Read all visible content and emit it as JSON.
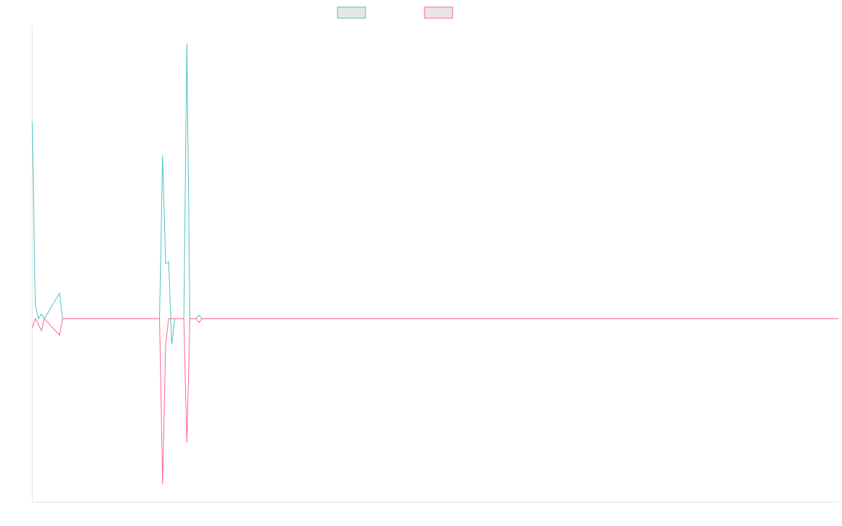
{
  "chart_data": {
    "type": "line",
    "title": "",
    "xlabel": "",
    "ylabel": "",
    "grid": false,
    "legend_position": "top-center",
    "ylim": [
      -2000,
      3200
    ],
    "xlim": [
      0,
      266
    ],
    "series": [
      {
        "color": "#4bc0c0",
        "fill": "#e6e6e6",
        "points": [
          [
            0,
            2150
          ],
          [
            1,
            150
          ],
          [
            2,
            0
          ],
          [
            3,
            50
          ],
          [
            4,
            0
          ],
          [
            9,
            280
          ],
          [
            10,
            0
          ],
          [
            42,
            0
          ],
          [
            43,
            1780
          ],
          [
            44,
            600
          ],
          [
            45,
            620
          ],
          [
            46,
            -280
          ],
          [
            47,
            0
          ],
          [
            50,
            0
          ],
          [
            51,
            3000
          ],
          [
            52,
            0
          ],
          [
            54,
            0
          ],
          [
            55,
            40
          ],
          [
            56,
            0
          ],
          [
            266,
            0
          ]
        ]
      },
      {
        "color": "#ff6384",
        "fill": "#e6e6e6",
        "points": [
          [
            0,
            -100
          ],
          [
            1,
            0
          ],
          [
            2,
            -60
          ],
          [
            3,
            -130
          ],
          [
            4,
            0
          ],
          [
            9,
            -180
          ],
          [
            10,
            0
          ],
          [
            42,
            0
          ],
          [
            43,
            -1800
          ],
          [
            44,
            -280
          ],
          [
            45,
            0
          ],
          [
            50,
            0
          ],
          [
            51,
            -1350
          ],
          [
            52,
            0
          ],
          [
            54,
            0
          ],
          [
            55,
            -40
          ],
          [
            56,
            0
          ],
          [
            266,
            0
          ]
        ]
      }
    ]
  }
}
